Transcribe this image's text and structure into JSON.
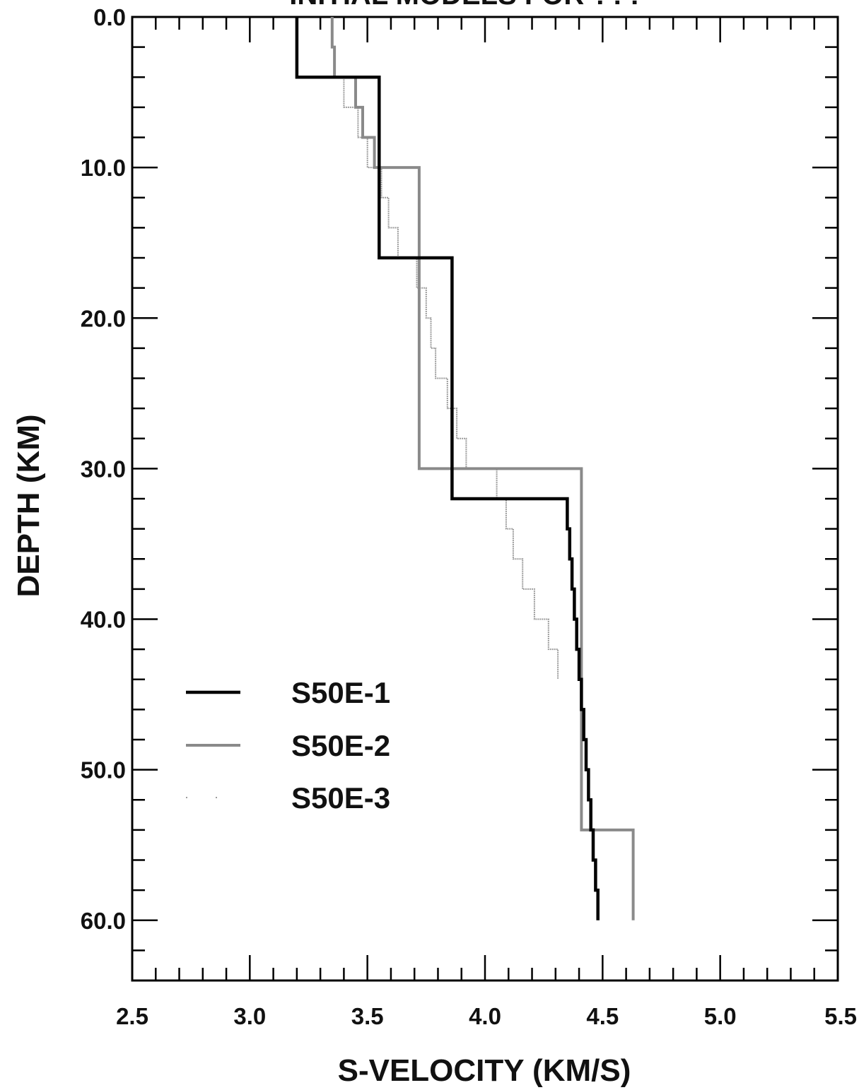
{
  "chart_data": {
    "type": "line",
    "title": "INITIAL MODELS FOR ???",
    "xlabel": "S-VELOCITY (KM/S)",
    "ylabel": "DEPTH (KM)",
    "xlim": [
      2.5,
      5.5
    ],
    "ylim": [
      0,
      64
    ],
    "y_inverted": true,
    "x_ticks": [
      "2.5",
      "3.0",
      "3.5",
      "4.0",
      "4.5",
      "5.0",
      "5.5"
    ],
    "y_ticks": [
      "0.0",
      "10.0",
      "20.0",
      "30.0",
      "40.0",
      "50.0",
      "60.0"
    ],
    "grid": false,
    "legend_position": "lower-left",
    "series": [
      {
        "name": "S50E-1",
        "style": "solid-black-thick",
        "color": "#000000",
        "points": [
          [
            3.2,
            0
          ],
          [
            3.2,
            4
          ],
          [
            3.55,
            4
          ],
          [
            3.55,
            16
          ],
          [
            3.86,
            16
          ],
          [
            3.86,
            32
          ],
          [
            4.35,
            32
          ],
          [
            4.35,
            34
          ],
          [
            4.36,
            34
          ],
          [
            4.36,
            36
          ],
          [
            4.37,
            36
          ],
          [
            4.37,
            38
          ],
          [
            4.38,
            38
          ],
          [
            4.38,
            40
          ],
          [
            4.39,
            40
          ],
          [
            4.39,
            42
          ],
          [
            4.4,
            42
          ],
          [
            4.4,
            44
          ],
          [
            4.41,
            44
          ],
          [
            4.41,
            46
          ],
          [
            4.42,
            46
          ],
          [
            4.42,
            48
          ],
          [
            4.43,
            48
          ],
          [
            4.43,
            50
          ],
          [
            4.44,
            50
          ],
          [
            4.44,
            52
          ],
          [
            4.45,
            52
          ],
          [
            4.45,
            54
          ],
          [
            4.46,
            54
          ],
          [
            4.46,
            56
          ],
          [
            4.47,
            56
          ],
          [
            4.47,
            58
          ],
          [
            4.48,
            58
          ],
          [
            4.48,
            60
          ]
        ]
      },
      {
        "name": "S50E-2",
        "style": "gray-thick",
        "color": "#888888",
        "points": [
          [
            3.35,
            0
          ],
          [
            3.35,
            2
          ],
          [
            3.36,
            2
          ],
          [
            3.36,
            4
          ],
          [
            3.45,
            4
          ],
          [
            3.45,
            6
          ],
          [
            3.48,
            6
          ],
          [
            3.48,
            8
          ],
          [
            3.53,
            8
          ],
          [
            3.53,
            10
          ],
          [
            3.72,
            10
          ],
          [
            3.72,
            30
          ],
          [
            4.41,
            30
          ],
          [
            4.41,
            54
          ],
          [
            4.63,
            54
          ],
          [
            4.63,
            60
          ]
        ]
      },
      {
        "name": "S50E-3",
        "style": "gray-thin",
        "color": "#a8a8a8",
        "points": [
          [
            3.35,
            0
          ],
          [
            3.35,
            2
          ],
          [
            3.36,
            2
          ],
          [
            3.36,
            4
          ],
          [
            3.4,
            4
          ],
          [
            3.4,
            6
          ],
          [
            3.46,
            6
          ],
          [
            3.46,
            8
          ],
          [
            3.5,
            8
          ],
          [
            3.5,
            10
          ],
          [
            3.56,
            10
          ],
          [
            3.56,
            12
          ],
          [
            3.59,
            12
          ],
          [
            3.59,
            14
          ],
          [
            3.63,
            14
          ],
          [
            3.63,
            16
          ],
          [
            3.71,
            16
          ],
          [
            3.71,
            18
          ],
          [
            3.75,
            18
          ],
          [
            3.75,
            20
          ],
          [
            3.77,
            20
          ],
          [
            3.77,
            22
          ],
          [
            3.79,
            22
          ],
          [
            3.79,
            24
          ],
          [
            3.84,
            24
          ],
          [
            3.84,
            26
          ],
          [
            3.88,
            26
          ],
          [
            3.88,
            28
          ],
          [
            3.92,
            28
          ],
          [
            3.92,
            30
          ],
          [
            4.05,
            30
          ],
          [
            4.05,
            32
          ],
          [
            4.09,
            32
          ],
          [
            4.09,
            34
          ],
          [
            4.12,
            34
          ],
          [
            4.12,
            36
          ],
          [
            4.16,
            36
          ],
          [
            4.16,
            38
          ],
          [
            4.21,
            38
          ],
          [
            4.21,
            40
          ],
          [
            4.27,
            40
          ],
          [
            4.27,
            42
          ],
          [
            4.31,
            42
          ],
          [
            4.31,
            44
          ]
        ]
      }
    ]
  },
  "page": {
    "background": "#ffffff"
  }
}
